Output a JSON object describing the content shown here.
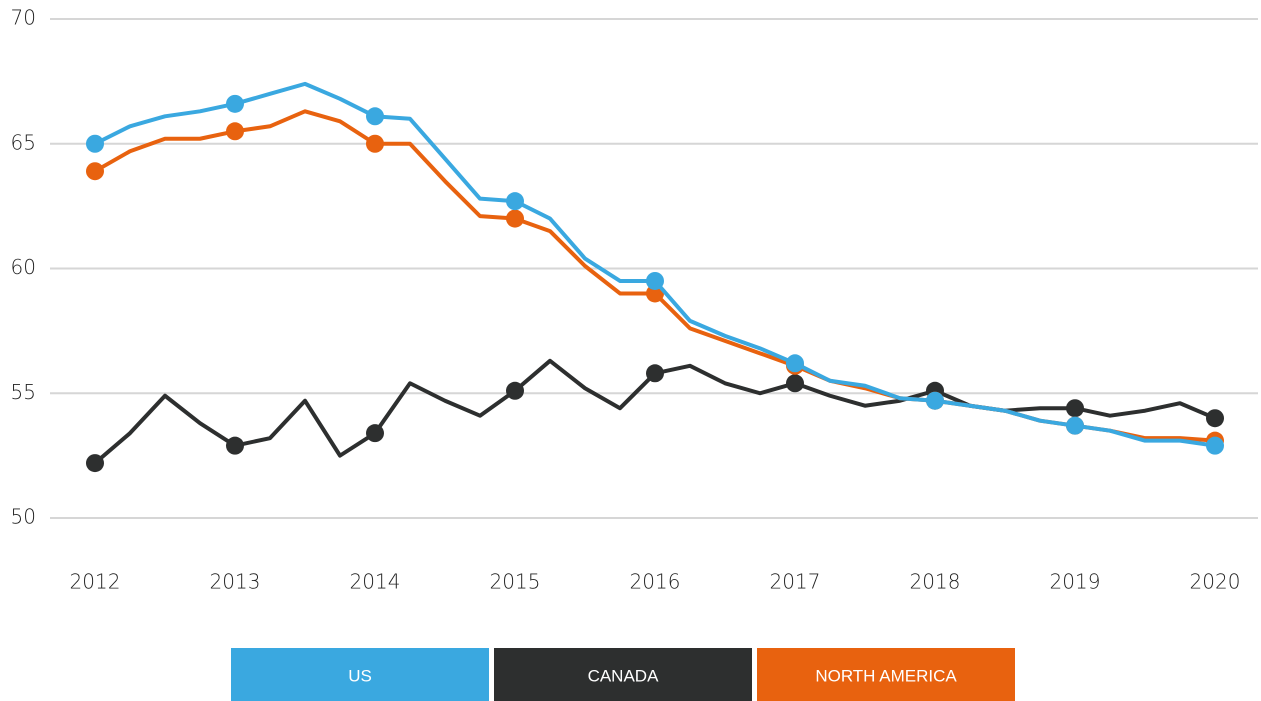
{
  "chart_data": {
    "type": "line",
    "x": [
      2012,
      2012.25,
      2012.5,
      2012.75,
      2013,
      2013.25,
      2013.5,
      2013.75,
      2014,
      2014.25,
      2014.5,
      2014.75,
      2015,
      2015.25,
      2015.5,
      2015.75,
      2016,
      2016.25,
      2016.5,
      2016.75,
      2017,
      2017.25,
      2017.5,
      2017.75,
      2018,
      2018.25,
      2018.5,
      2018.75,
      2019,
      2019.25,
      2019.5,
      2019.75,
      2020
    ],
    "series": [
      {
        "name": "CANADA",
        "color": "#2d2f2f",
        "values": [
          52.2,
          53.4,
          54.9,
          53.8,
          52.9,
          53.2,
          54.7,
          52.5,
          53.4,
          55.4,
          54.7,
          54.1,
          55.1,
          56.3,
          55.2,
          54.4,
          55.8,
          56.1,
          55.4,
          55.0,
          55.4,
          54.9,
          54.5,
          54.7,
          55.1,
          54.5,
          54.3,
          54.4,
          54.4,
          54.1,
          54.3,
          54.6,
          54.0
        ]
      },
      {
        "name": "NORTH AMERICA",
        "color": "#e8620f",
        "values": [
          63.9,
          64.7,
          65.2,
          65.2,
          65.5,
          65.7,
          66.3,
          65.9,
          65.0,
          65.0,
          63.5,
          62.1,
          62.0,
          61.5,
          60.1,
          59.0,
          59.0,
          57.6,
          57.1,
          56.6,
          56.1,
          55.5,
          55.2,
          54.8,
          54.7,
          54.5,
          54.3,
          53.9,
          53.7,
          53.5,
          53.2,
          53.2,
          53.1
        ]
      },
      {
        "name": "US",
        "color": "#3aa8e0",
        "values": [
          65.0,
          65.7,
          66.1,
          66.3,
          66.6,
          67.0,
          67.4,
          66.8,
          66.1,
          66.0,
          64.4,
          62.8,
          62.7,
          62.0,
          60.4,
          59.5,
          59.5,
          57.9,
          57.3,
          56.8,
          56.2,
          55.5,
          55.3,
          54.8,
          54.7,
          54.5,
          54.3,
          53.9,
          53.7,
          53.5,
          53.1,
          53.1,
          52.9
        ]
      }
    ],
    "xlim": [
      2012,
      2020
    ],
    "xticks": [
      2012,
      2013,
      2014,
      2015,
      2016,
      2017,
      2018,
      2019,
      2020
    ],
    "ylim": [
      50,
      70
    ],
    "yticks": [
      50,
      55,
      60,
      65,
      70
    ],
    "grid": true
  }
}
